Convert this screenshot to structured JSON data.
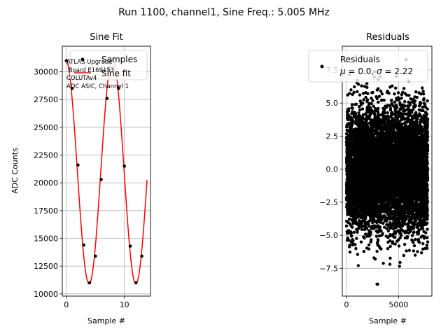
{
  "suptitle": "Run 1100, channel1, Sine Freq.: 5.005 MHz",
  "chart_data": [
    {
      "type": "scatter",
      "title": "Sine Fit",
      "xlabel": "Sample #",
      "ylabel": "ADC Counts",
      "xlim": [
        -0.7,
        14.5
      ],
      "ylim": [
        9800,
        32300
      ],
      "xticks": [
        {
          "value": 0,
          "label": "0"
        },
        {
          "value": 10,
          "label": "10"
        }
      ],
      "yticks": [
        {
          "value": 10000,
          "label": "10000"
        },
        {
          "value": 12500,
          "label": "12500"
        },
        {
          "value": 15000,
          "label": "15000"
        },
        {
          "value": 17500,
          "label": "17500"
        },
        {
          "value": 20000,
          "label": "20000"
        },
        {
          "value": 22500,
          "label": "22500"
        },
        {
          "value": 25000,
          "label": "25000"
        },
        {
          "value": 27500,
          "label": "27500"
        },
        {
          "value": 30000,
          "label": "30000"
        }
      ],
      "grid": true,
      "legend_position": "upper-right",
      "series": [
        {
          "name": "Samples",
          "marker": "dot",
          "color": "#000000",
          "x": [
            0,
            1,
            2,
            3,
            4,
            5,
            6,
            7,
            8,
            9,
            10,
            11,
            12,
            13
          ],
          "y": [
            31000,
            28500,
            21600,
            14400,
            11000,
            13400,
            20300,
            27600,
            31100,
            28500,
            21500,
            14300,
            11000,
            13400
          ]
        },
        {
          "name": "Sine fit",
          "marker": "line",
          "color": "#ff0000",
          "fit": {
            "mean": 21000,
            "amplitude": 10100,
            "period_samples": 8.06,
            "phase_rad": 1.658,
            "x_range": [
              0,
              13.9
            ]
          }
        }
      ],
      "annotation": [
        "ATLAS Upgrade",
        " Board E169153",
        "COLUTAv4",
        "ADC ASIC, Channel 1"
      ]
    },
    {
      "type": "scatter",
      "title": "Residuals",
      "xlabel": "Sample #",
      "xlim": [
        -400,
        8200
      ],
      "ylim": [
        -9.6,
        9.3
      ],
      "xticks": [
        {
          "value": 0,
          "label": "0"
        },
        {
          "value": 5000,
          "label": "5000"
        }
      ],
      "yticks": [
        {
          "value": -7.5,
          "label": "−7.5"
        },
        {
          "value": -5.0,
          "label": "−5.0"
        },
        {
          "value": -2.5,
          "label": "−2.5"
        },
        {
          "value": 0.0,
          "label": "0.0"
        },
        {
          "value": 2.5,
          "label": "2.5"
        },
        {
          "value": 5.0,
          "label": "5.0"
        },
        {
          "value": 7.5,
          "label": "7.5"
        }
      ],
      "grid": true,
      "legend_position": "upper-right",
      "series": [
        {
          "name": "Residuals",
          "color": "#000000",
          "x_range": [
            0,
            7800
          ],
          "n_points": 7800,
          "mean": 0.0,
          "sigma": 2.22,
          "approx_extent": [
            -8.7,
            8.9
          ]
        }
      ],
      "legend_entry": {
        "line1": "Residuals",
        "line2_prefix": "μ = ",
        "mu": "0.0",
        "line2_mid": ", ",
        "sigma_symbol": "σ",
        "line2_eq": " = ",
        "sigma": "2.22"
      }
    }
  ]
}
